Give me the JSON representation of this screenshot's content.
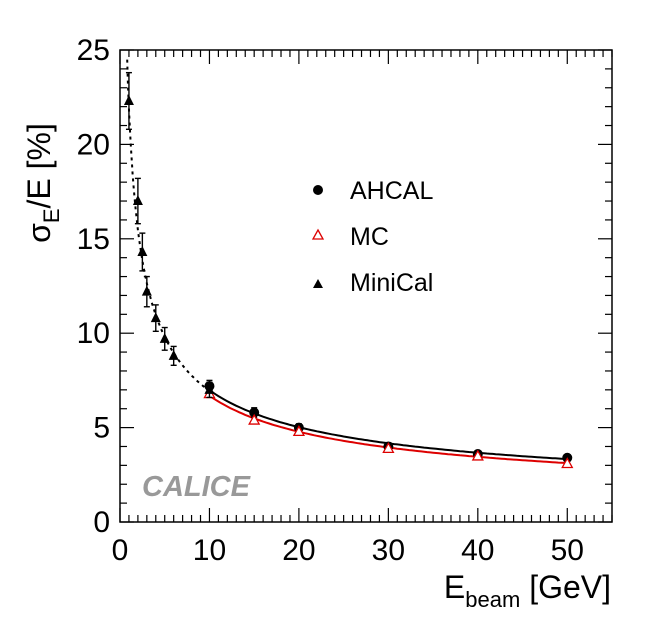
{
  "chart_data": {
    "type": "scatter",
    "xlim": [
      0,
      55
    ],
    "ylim": [
      0,
      25
    ],
    "x_ticks": [
      0,
      10,
      20,
      30,
      40,
      50
    ],
    "y_ticks": [
      0,
      5,
      10,
      15,
      20,
      25
    ],
    "xlabel": {
      "main": "E",
      "sub": "beam",
      "unit": " [GeV]"
    },
    "ylabel": {
      "main": "σ",
      "sub": "E",
      "rest": "/E [%]"
    },
    "watermark": "CALICE",
    "legend_position": "center",
    "series": [
      {
        "name": "AHCAL",
        "marker": "filled-circle",
        "color": "#000000",
        "points": [
          {
            "x": 10,
            "y": 7.2,
            "err": 0.3
          },
          {
            "x": 15,
            "y": 5.8,
            "err": 0.25
          },
          {
            "x": 20,
            "y": 5.0,
            "err": 0.2
          },
          {
            "x": 30,
            "y": 4.0,
            "err": 0.2
          },
          {
            "x": 40,
            "y": 3.6,
            "err": 0.15
          },
          {
            "x": 50,
            "y": 3.4,
            "err": 0.15
          }
        ],
        "fit": {
          "stochastic": 21.7,
          "constant": 1.3,
          "style": "solid",
          "x_range": [
            10,
            50
          ]
        }
      },
      {
        "name": "MC",
        "marker": "open-triangle",
        "color": "#dd0000",
        "points": [
          {
            "x": 10,
            "y": 6.8
          },
          {
            "x": 15,
            "y": 5.4
          },
          {
            "x": 20,
            "y": 4.8
          },
          {
            "x": 30,
            "y": 3.9
          },
          {
            "x": 40,
            "y": 3.5
          },
          {
            "x": 50,
            "y": 3.1
          }
        ],
        "fit": {
          "stochastic": 20.9,
          "constant": 1.0,
          "style": "solid",
          "x_range": [
            10,
            50
          ]
        }
      },
      {
        "name": "MiniCal",
        "marker": "filled-triangle",
        "color": "#000000",
        "points": [
          {
            "x": 1,
            "y": 22.3,
            "err": 1.5
          },
          {
            "x": 2,
            "y": 17.0,
            "err": 1.2
          },
          {
            "x": 2.5,
            "y": 14.3,
            "err": 1.0
          },
          {
            "x": 3,
            "y": 12.2,
            "err": 0.8
          },
          {
            "x": 4,
            "y": 10.8,
            "err": 0.7
          },
          {
            "x": 5,
            "y": 9.7,
            "err": 0.6
          },
          {
            "x": 6,
            "y": 8.8,
            "err": 0.5
          },
          {
            "x": 10,
            "y": 7.0,
            "err": 0.4
          }
        ],
        "fit": {
          "stochastic": 21.9,
          "constant": 0.5,
          "style": "dotted",
          "x_range": [
            0.8,
            10
          ]
        }
      }
    ]
  }
}
